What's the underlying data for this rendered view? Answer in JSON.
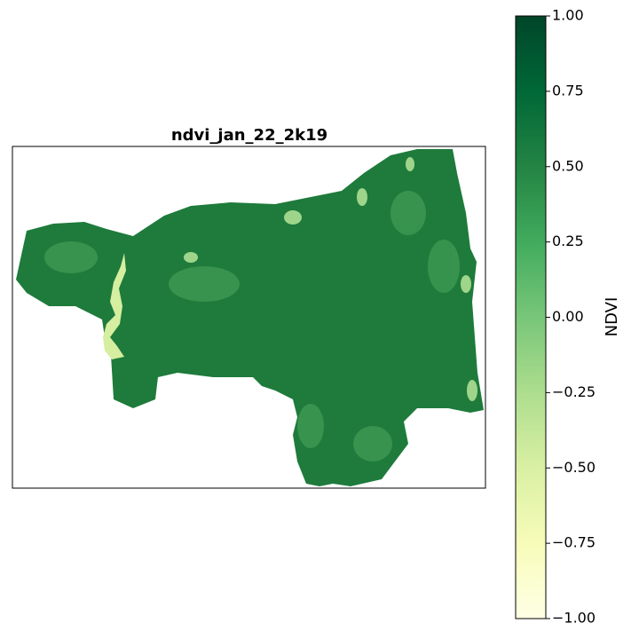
{
  "map": {
    "title": "ndvi_jan_22_2k19",
    "colorbar": {
      "label": "NDVI",
      "lim": [
        -1,
        1
      ],
      "ticks": [
        {
          "value": -1,
          "label": "−1.00"
        },
        {
          "value": -0.75,
          "label": "−0.75"
        },
        {
          "value": -0.5,
          "label": "−0.50"
        },
        {
          "value": -0.25,
          "label": "−0.25"
        },
        {
          "value": 0,
          "label": "0.00"
        },
        {
          "value": 0.25,
          "label": "0.25"
        },
        {
          "value": 0.5,
          "label": "0.50"
        },
        {
          "value": 0.75,
          "label": "0.75"
        },
        {
          "value": 1,
          "label": "1.00"
        }
      ]
    }
  }
}
